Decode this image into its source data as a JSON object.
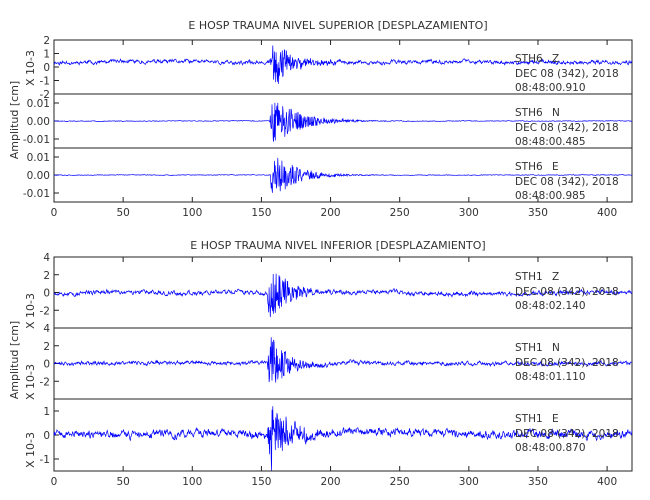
{
  "chart_data": [
    {
      "type": "line",
      "title": "E HOSP TRAUMA NIVEL SUPERIOR [DESPLAZAMIENTO]",
      "ylabel": "Amplitud [cm]",
      "xlabel": "",
      "xlim": [
        0,
        418
      ],
      "xticks": [
        0,
        50,
        100,
        150,
        200,
        250,
        300,
        350,
        400
      ],
      "grid": false,
      "color": "#0000ff",
      "traces": [
        {
          "station": "STH6",
          "component": "Z",
          "date": "DEC 08 (342), 2018",
          "time": "08:48:00.910",
          "scale_label": "X 10-3",
          "ylim": [
            -2,
            2
          ],
          "yticks": [
            -2,
            -1,
            0,
            1,
            2
          ],
          "event_onset_s": 156,
          "event_peak_s": 159,
          "peak_amplitude": 1.9,
          "noise_amplitude": 0.45,
          "coda_decay_s": 14,
          "offset": 0.35,
          "seed": 11
        },
        {
          "station": "STH6",
          "component": "N",
          "date": "DEC 08 (342), 2018",
          "time": "08:48:00.485",
          "scale_label": "",
          "ylim": [
            -0.015,
            0.015
          ],
          "yticks": [
            -0.01,
            0.0,
            0.01
          ],
          "tick_labels": [
            "-0.01",
            "0.00",
            "0.01"
          ],
          "event_onset_s": 156,
          "event_peak_s": 158,
          "peak_amplitude": 0.0145,
          "noise_amplitude": 0.0006,
          "coda_decay_s": 18,
          "offset": 0.0,
          "seed": 23
        },
        {
          "station": "STH6",
          "component": "E",
          "date": "DEC 08 (342), 2018",
          "time": "08:48:00.985",
          "scale_label": "",
          "ylim": [
            -0.015,
            0.015
          ],
          "yticks": [
            -0.01,
            0.0,
            0.01
          ],
          "tick_labels": [
            "-0.01",
            "0.00",
            "0.01"
          ],
          "event_onset_s": 156,
          "event_peak_s": 158,
          "peak_amplitude": 0.0145,
          "noise_amplitude": 0.0006,
          "coda_decay_s": 16,
          "offset": 0.0,
          "seed": 37
        }
      ]
    },
    {
      "type": "line",
      "title": "E HOSP TRAUMA NIVEL INFERIOR [DESPLAZAMIENTO]",
      "ylabel": "Amplitud [cm]",
      "xlabel": "",
      "xlim": [
        0,
        418
      ],
      "xticks": [
        0,
        50,
        100,
        150,
        200,
        250,
        300,
        350,
        400
      ],
      "grid": false,
      "color": "#0000ff",
      "traces": [
        {
          "station": "STH1",
          "component": "Z",
          "date": "DEC 08 (342), 2018",
          "time": "08:48:02.140",
          "scale_label": "X 10-3",
          "ylim": [
            -4,
            4
          ],
          "yticks": [
            -2,
            0,
            2,
            4
          ],
          "event_onset_s": 154,
          "event_peak_s": 156,
          "peak_amplitude": 3.8,
          "noise_amplitude": 0.8,
          "coda_decay_s": 12,
          "offset": 0.0,
          "seed": 53
        },
        {
          "station": "STH1",
          "component": "N",
          "date": "DEC 08 (342), 2018",
          "time": "08:48:01.110",
          "scale_label": "X 10-3",
          "ylim": [
            -4,
            4
          ],
          "yticks": [
            -2,
            0,
            2,
            4
          ],
          "event_onset_s": 154,
          "event_peak_s": 156,
          "peak_amplitude": 3.6,
          "noise_amplitude": 0.7,
          "coda_decay_s": 12,
          "offset": 0.0,
          "seed": 71
        },
        {
          "station": "STH1",
          "component": "E",
          "date": "DEC 08 (342), 2018",
          "time": "08:48:00.870",
          "scale_label": "X 10-3",
          "ylim": [
            -1.5,
            1.5
          ],
          "yticks": [
            -1,
            0,
            1
          ],
          "event_onset_s": 154,
          "event_peak_s": 157,
          "peak_amplitude": 1.45,
          "noise_amplitude": 0.55,
          "coda_decay_s": 12,
          "offset": 0.05,
          "seed": 89
        }
      ]
    }
  ]
}
